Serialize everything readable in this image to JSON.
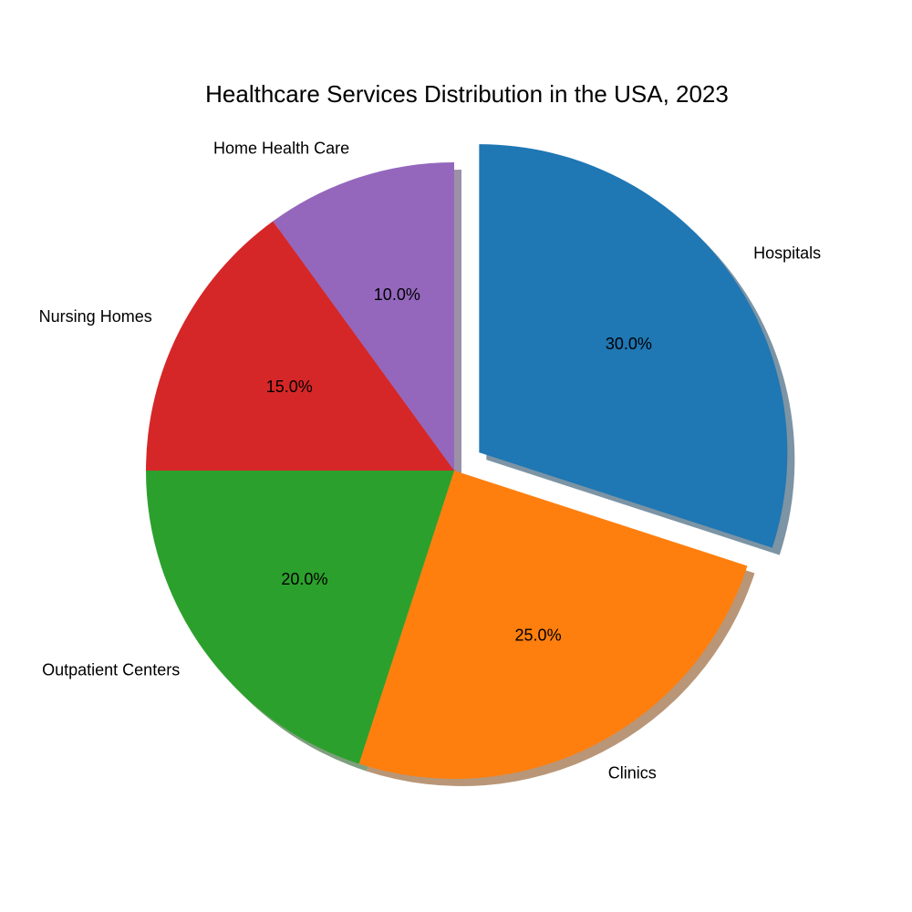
{
  "chart_data": {
    "type": "pie",
    "title": "Healthcare Services Distribution in the USA, 2023",
    "labels": [
      "Hospitals",
      "Clinics",
      "Outpatient Centers",
      "Nursing Homes",
      "Home Health Care"
    ],
    "values": [
      30,
      25,
      20,
      15,
      10
    ],
    "percent_labels": [
      "30.0%",
      "25.0%",
      "20.0%",
      "15.0%",
      "10.0%"
    ],
    "colors": [
      "#1f77b4",
      "#ff7f0e",
      "#2ca02c",
      "#d62728",
      "#9467bd"
    ],
    "exploded": [
      true,
      false,
      false,
      false,
      false
    ],
    "shadow": true,
    "start_angle_deg": 90,
    "direction": "clockwise"
  }
}
